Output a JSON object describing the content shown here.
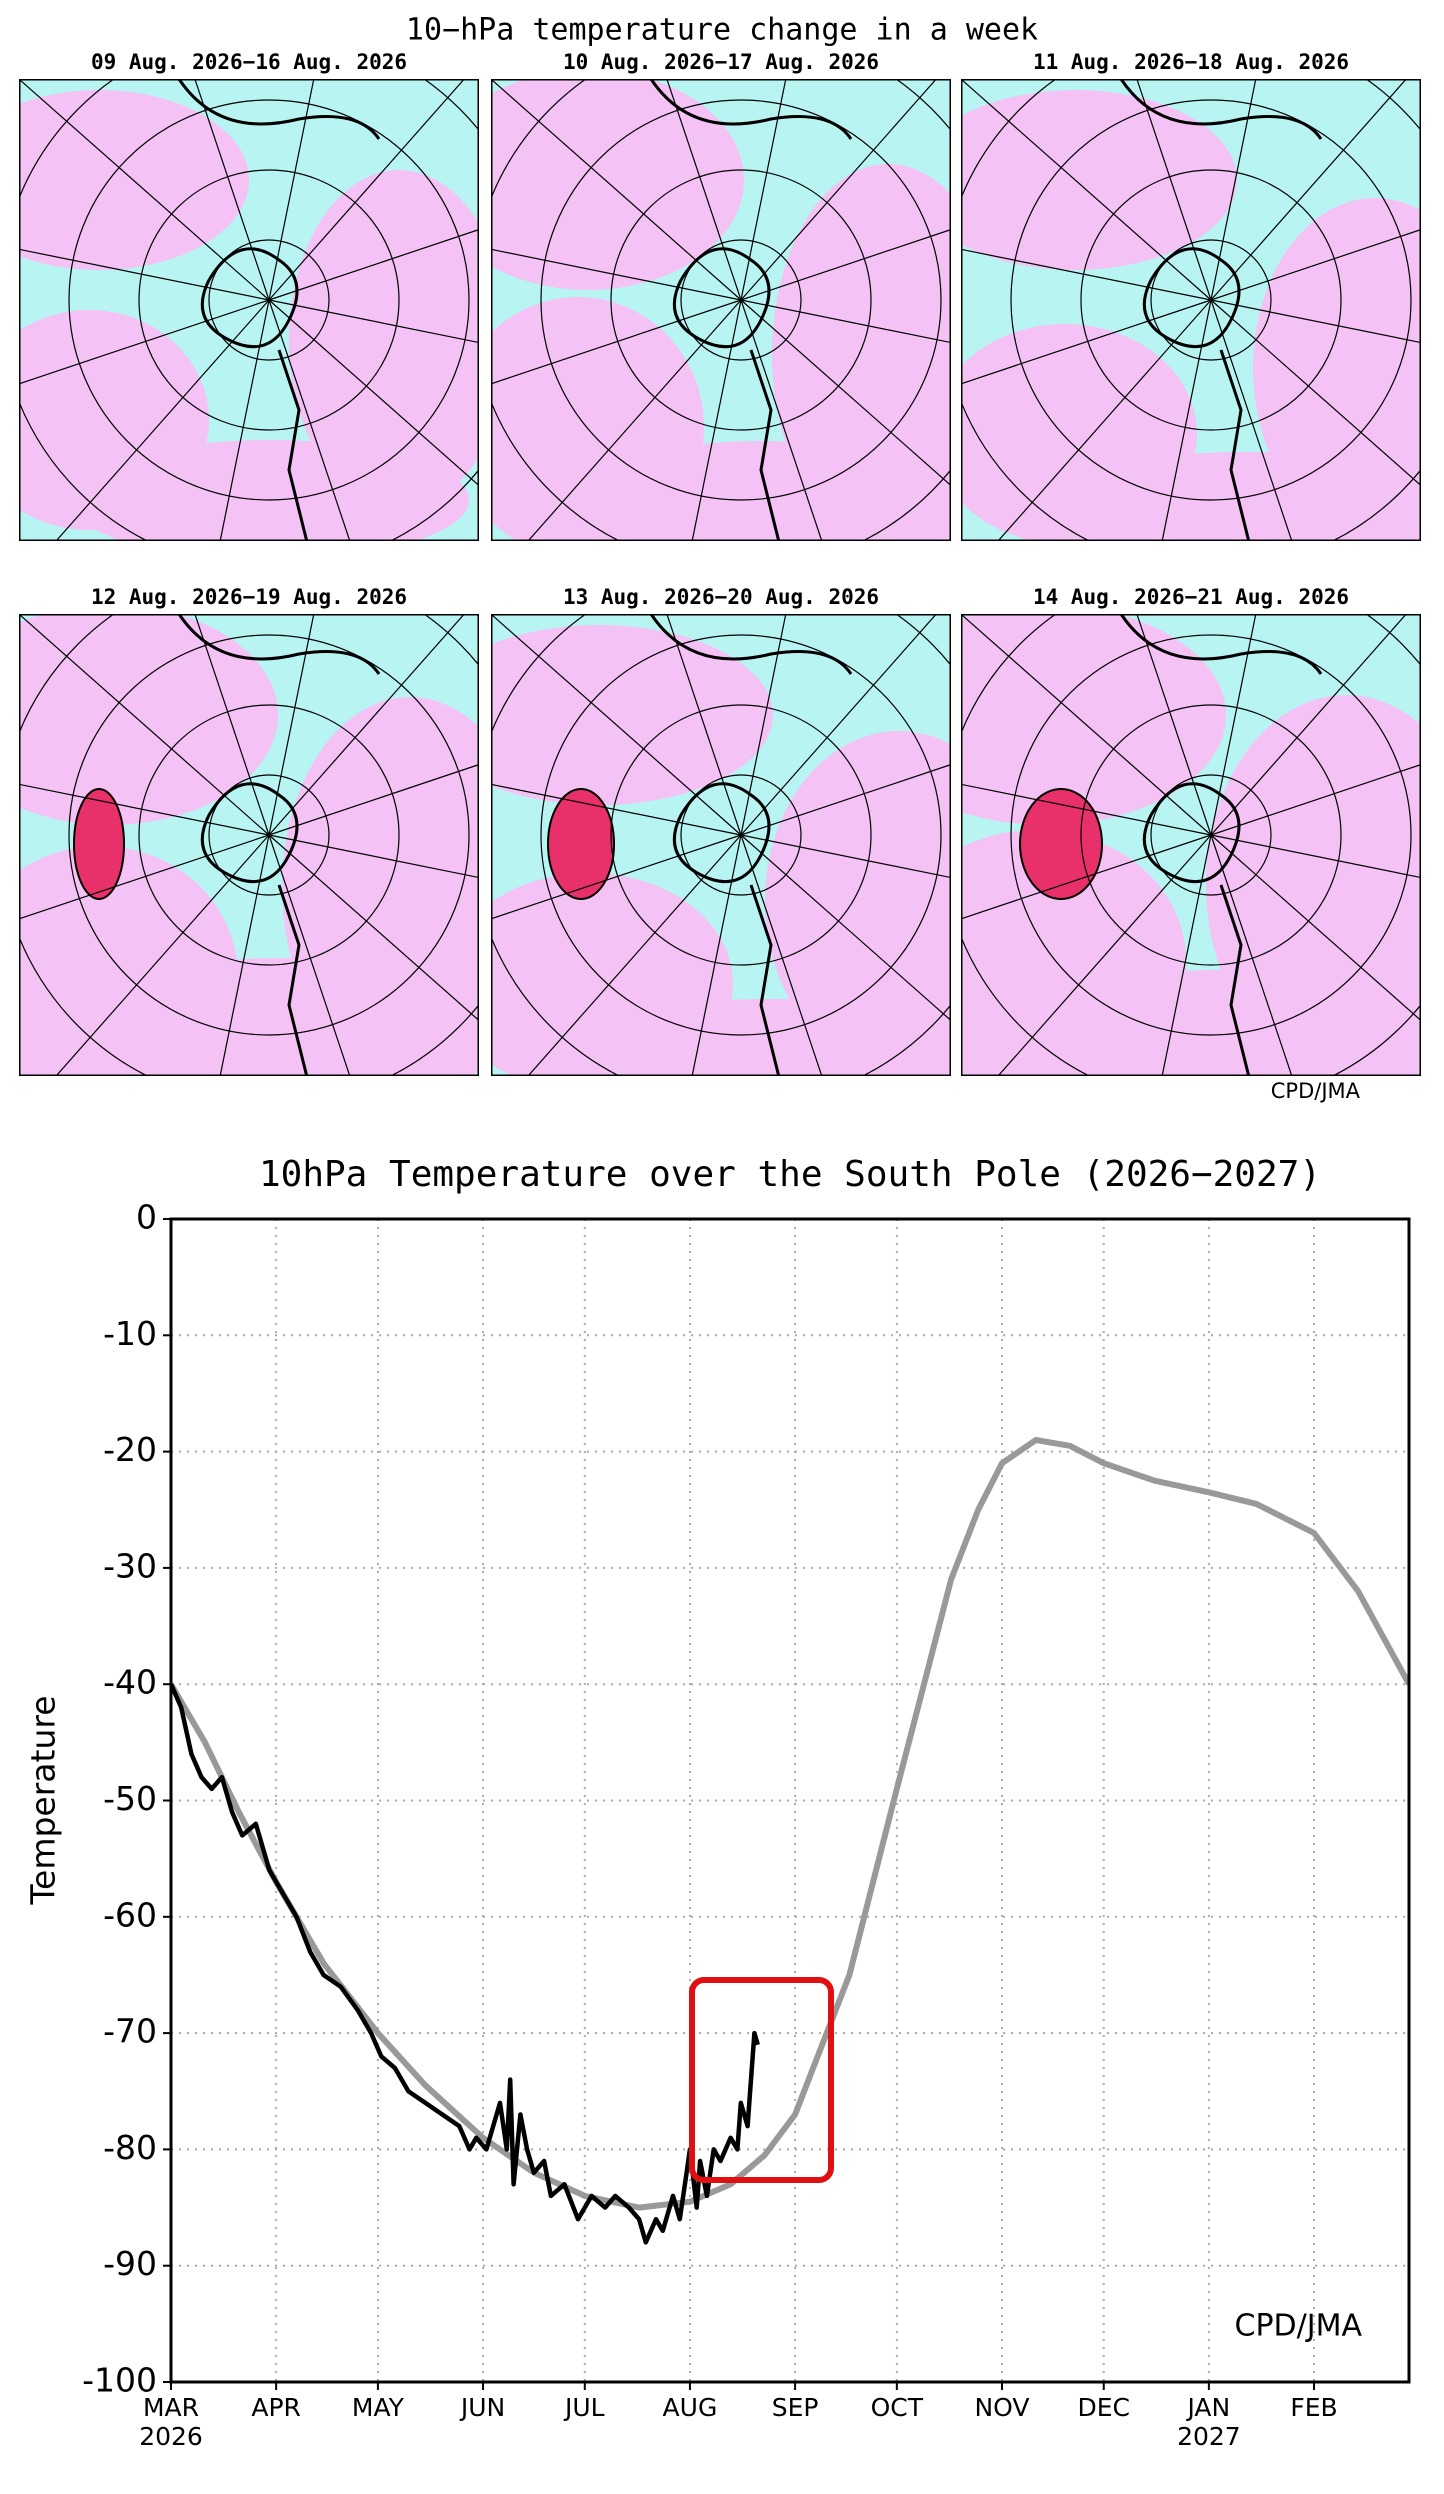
{
  "maps": {
    "title": "10−hPa temperature change in a week",
    "panels": [
      {
        "title": "09 Aug. 2026−16 Aug. 2026"
      },
      {
        "title": "10 Aug. 2026−17 Aug. 2026"
      },
      {
        "title": "11 Aug. 2026−18 Aug. 2026"
      },
      {
        "title": "12 Aug. 2026−19 Aug. 2026"
      },
      {
        "title": "13 Aug. 2026−20 Aug. 2026"
      },
      {
        "title": "14 Aug. 2026−21 Aug. 2026"
      }
    ],
    "credit": "CPD/JMA"
  },
  "chart_data": {
    "type": "line",
    "title": "10hPa Temperature over the South Pole (2026−2027)",
    "y_label": "Temperature",
    "annotation": "CPD/JMA",
    "xlim": [
      0,
      365
    ],
    "xticks": [
      {
        "value": 0,
        "label": "MAR"
      },
      {
        "value": 31,
        "label": "APR"
      },
      {
        "value": 61,
        "label": "MAY"
      },
      {
        "value": 92,
        "label": "JUN"
      },
      {
        "value": 122,
        "label": "JUL"
      },
      {
        "value": 153,
        "label": "AUG"
      },
      {
        "value": 184,
        "label": "SEP"
      },
      {
        "value": 214,
        "label": "OCT"
      },
      {
        "value": 245,
        "label": "NOV"
      },
      {
        "value": 275,
        "label": "DEC"
      },
      {
        "value": 306,
        "label": "JAN"
      },
      {
        "value": 337,
        "label": "FEB"
      }
    ],
    "xtick_sublabels": [
      {
        "value": 0,
        "label": "2026"
      },
      {
        "value": 306,
        "label": "2027"
      }
    ],
    "ylim": [
      -100,
      0
    ],
    "yticks": [
      -100,
      -90,
      -80,
      -70,
      -60,
      -50,
      -40,
      -30,
      -20,
      -10,
      0
    ],
    "grid": true,
    "series": [
      {
        "color": "#999999",
        "x": [
          0,
          10,
          20,
          31,
          45,
          61,
          75,
          92,
          107,
          122,
          138,
          153,
          165,
          175,
          184,
          192,
          200,
          207,
          214,
          222,
          230,
          238,
          245,
          255,
          265,
          275,
          290,
          306,
          320,
          337,
          350,
          365
        ],
        "values": [
          -40,
          -45,
          -51,
          -57,
          -64,
          -70,
          -74.5,
          -79,
          -82,
          -84,
          -85,
          -84.5,
          -83,
          -80.5,
          -77,
          -71,
          -65,
          -57,
          -49,
          -40,
          -31,
          -25,
          -21,
          -19,
          -19.5,
          -21,
          -22.5,
          -23.5,
          -24.5,
          -27,
          -32,
          -40
        ]
      },
      {
        "color": "#000000",
        "x": [
          0,
          3,
          6,
          9,
          12,
          15,
          18,
          21,
          25,
          29,
          33,
          37,
          41,
          45,
          50,
          55,
          59,
          62,
          66,
          70,
          75,
          80,
          85,
          88,
          90,
          93,
          95,
          97,
          99,
          100,
          101,
          103,
          105,
          107,
          110,
          112,
          116,
          120,
          124,
          128,
          131,
          135,
          138,
          140,
          143,
          145,
          148,
          150,
          152,
          153,
          155,
          156,
          158,
          160,
          162,
          165,
          167,
          168,
          170,
          172,
          173
        ],
        "values": [
          -40,
          -42,
          -46,
          -48,
          -49,
          -48,
          -51,
          -53,
          -52,
          -56,
          -58,
          -60,
          -63,
          -65,
          -66,
          -68,
          -70,
          -72,
          -73,
          -75,
          -76,
          -77,
          -78,
          -80,
          -79,
          -80,
          -78,
          -76,
          -80,
          -74,
          -83,
          -77,
          -80,
          -82,
          -81,
          -84,
          -83,
          -86,
          -84,
          -85,
          -84,
          -85,
          -86,
          -88,
          -86,
          -87,
          -84,
          -86,
          -82,
          -80,
          -85,
          -81,
          -84,
          -80,
          -81,
          -79,
          -80,
          -76,
          -78,
          -70,
          -71
        ]
      }
    ]
  }
}
